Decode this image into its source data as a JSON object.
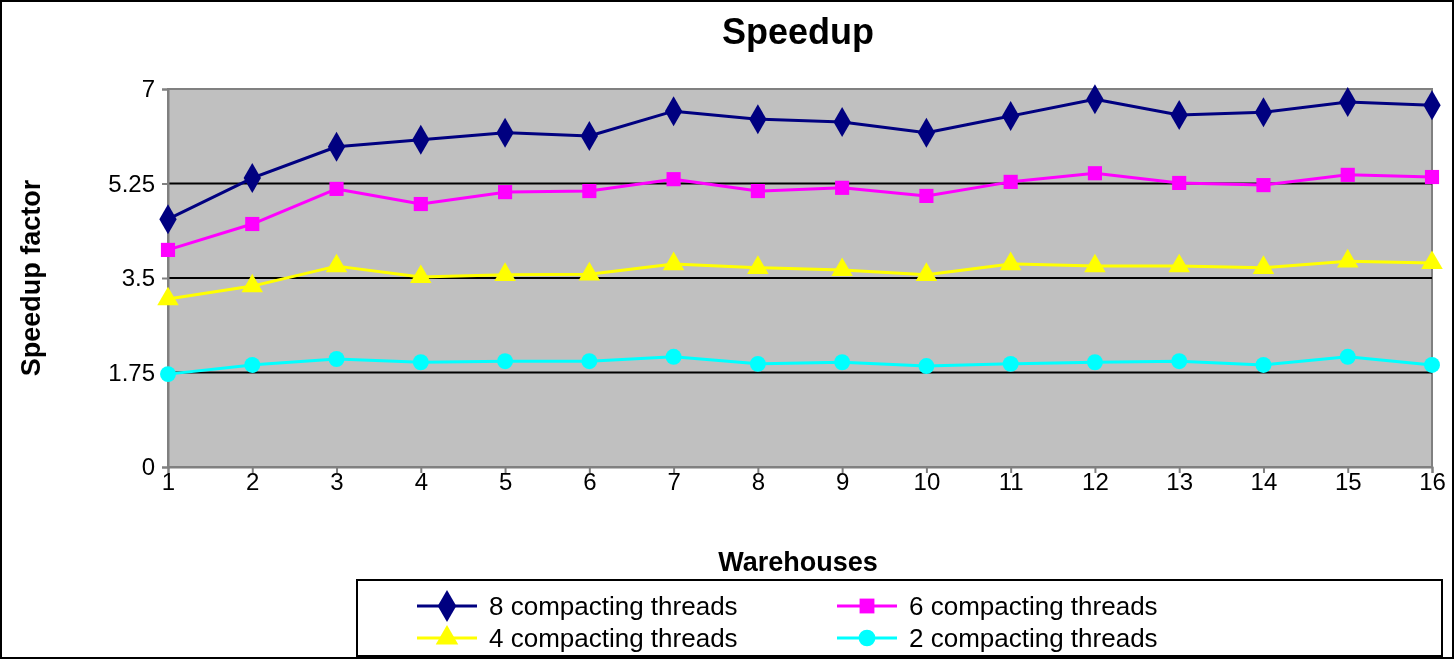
{
  "chart_data": {
    "type": "line",
    "title": "Speedup",
    "xlabel": "Warehouses",
    "ylabel": "Speedup factor",
    "x": [
      1,
      2,
      3,
      4,
      5,
      6,
      7,
      8,
      9,
      10,
      11,
      12,
      13,
      14,
      15,
      16
    ],
    "xlim": [
      1,
      16
    ],
    "xticks": [
      1,
      2,
      3,
      4,
      5,
      6,
      7,
      8,
      9,
      10,
      11,
      12,
      13,
      14,
      15,
      16
    ],
    "ylim": [
      0,
      7
    ],
    "yticks": [
      0,
      1.75,
      3.5,
      5.25,
      7
    ],
    "grid": "y",
    "legend": "bottom",
    "line_style": "solid",
    "series": [
      {
        "name": "8 compacting threads",
        "color": "#000080",
        "marker": "diamond",
        "values": [
          4.59,
          5.35,
          5.93,
          6.06,
          6.19,
          6.13,
          6.59,
          6.44,
          6.39,
          6.19,
          6.5,
          6.81,
          6.52,
          6.57,
          6.76,
          6.7
        ]
      },
      {
        "name": "6 compacting threads",
        "color": "#ff00ff",
        "marker": "square",
        "values": [
          4.02,
          4.5,
          5.15,
          4.87,
          5.09,
          5.11,
          5.33,
          5.11,
          5.17,
          5.02,
          5.28,
          5.44,
          5.26,
          5.22,
          5.41,
          5.37
        ]
      },
      {
        "name": "4 compacting threads",
        "color": "#ffff00",
        "marker": "triangle",
        "values": [
          3.11,
          3.35,
          3.72,
          3.52,
          3.56,
          3.57,
          3.76,
          3.69,
          3.65,
          3.56,
          3.76,
          3.72,
          3.72,
          3.69,
          3.81,
          3.78
        ]
      },
      {
        "name": "2 compacting threads",
        "color": "#00ffff",
        "marker": "circle",
        "values": [
          1.72,
          1.89,
          2.0,
          1.94,
          1.96,
          1.96,
          2.04,
          1.91,
          1.94,
          1.87,
          1.91,
          1.94,
          1.96,
          1.89,
          2.04,
          1.89
        ]
      }
    ]
  }
}
